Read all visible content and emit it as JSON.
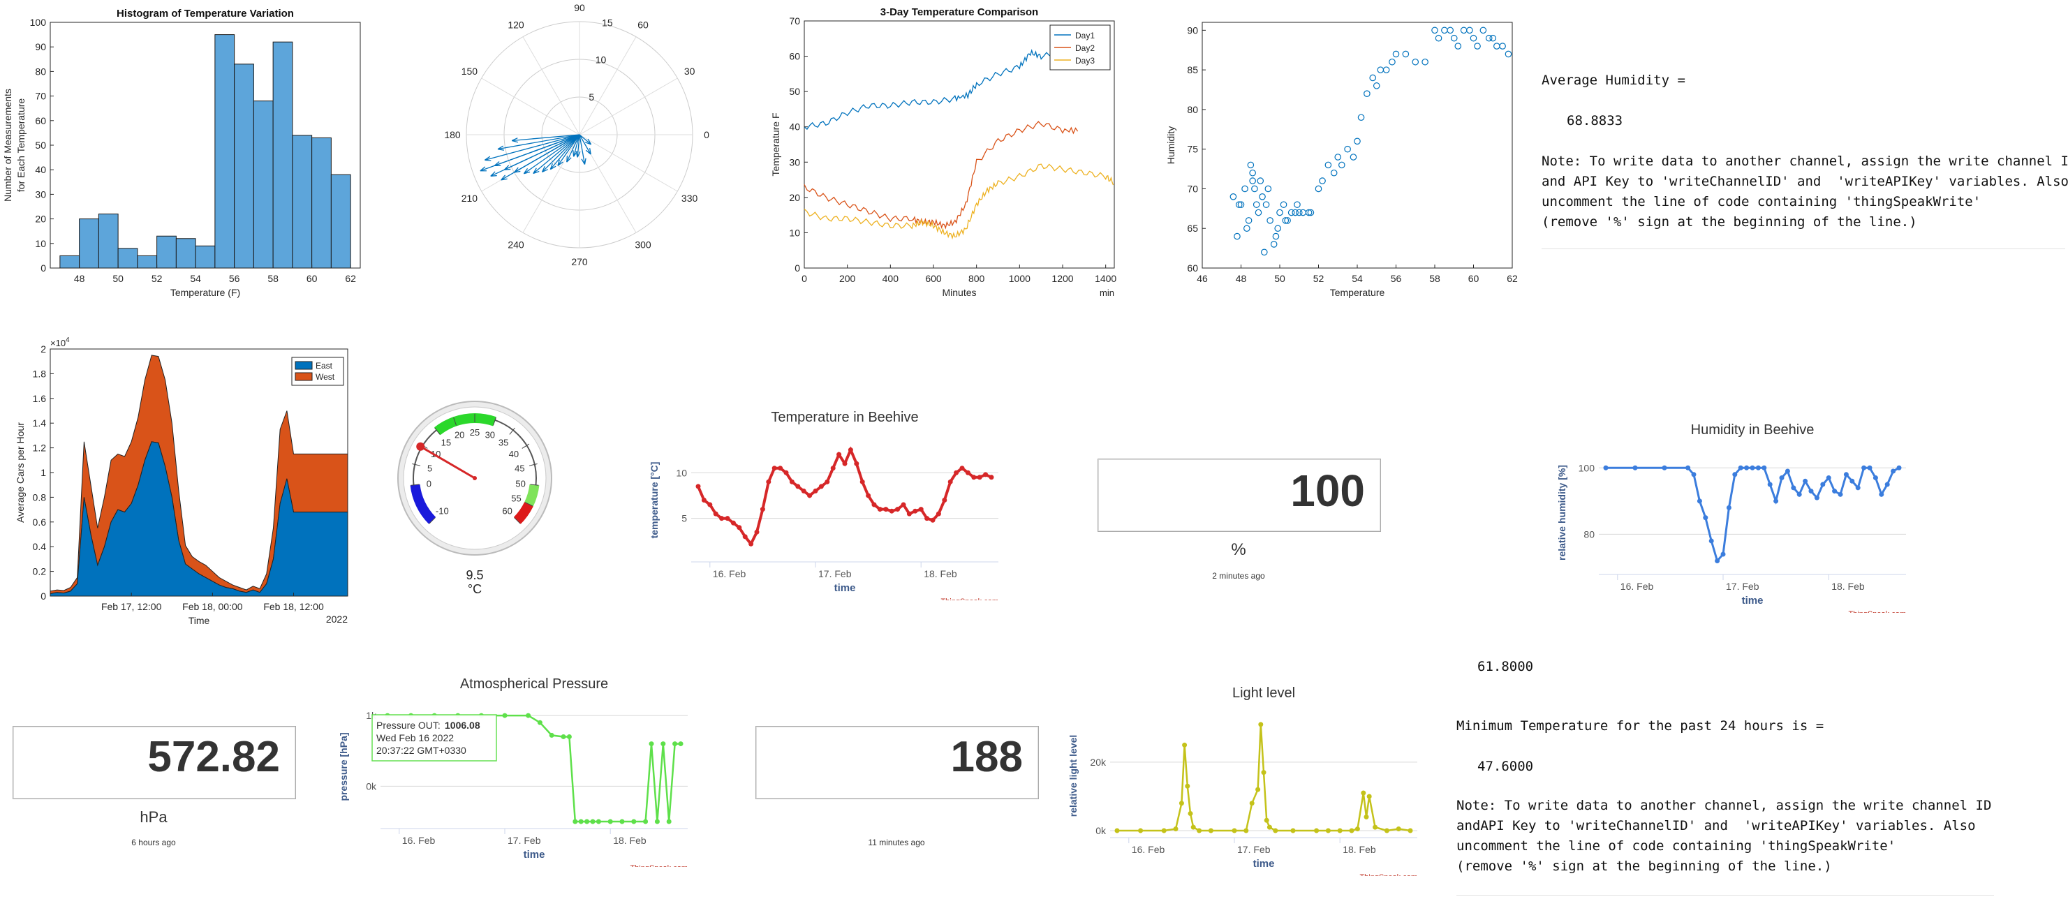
{
  "colors": {
    "matlab_blue": "#0072BD",
    "matlab_orange": "#D95319",
    "matlab_yellow": "#EDB120",
    "bar_fill": "#5DA5DA",
    "ts_red": "#d62728",
    "ts_blue": "#3b7ddd",
    "ts_green": "#5ee04a",
    "ts_olive": "#c4c21a",
    "ts_credit": "#c0392b"
  },
  "histogram": {
    "chart_data": {
      "type": "bar",
      "title": "Histogram of Temperature Variation",
      "xlabel": "Temperature (F)",
      "ylabel_line1": "Number of Measurements",
      "ylabel_line2": "for Each Temperature",
      "bin_edges": [
        47,
        48,
        49,
        50,
        51,
        52,
        53,
        54,
        55,
        56,
        57,
        58,
        59,
        60,
        61,
        62
      ],
      "values": [
        5,
        20,
        22,
        8,
        5,
        13,
        12,
        9,
        95,
        83,
        68,
        92,
        54,
        53,
        38
      ],
      "xlim": [
        46.5,
        62.5
      ],
      "ylim": [
        0,
        100
      ],
      "xticks": [
        "48",
        "50",
        "52",
        "54",
        "56",
        "58",
        "60",
        "62"
      ],
      "yticks": [
        "0",
        "10",
        "20",
        "30",
        "40",
        "50",
        "60",
        "70",
        "80",
        "90",
        "100"
      ]
    }
  },
  "polar": {
    "chart_data": {
      "type": "compass",
      "angle_labels": [
        "0",
        "30",
        "60",
        "90",
        "120",
        "150",
        "180",
        "210",
        "240",
        "270",
        "300",
        "330"
      ],
      "radius_labels": [
        "5",
        "10",
        "15"
      ],
      "rmax": 15,
      "vectors_note_deg_r": [
        [
          195,
          13
        ],
        [
          200,
          12
        ],
        [
          205,
          11
        ],
        [
          210,
          10
        ],
        [
          190,
          11
        ],
        [
          215,
          9
        ],
        [
          220,
          8
        ],
        [
          225,
          7
        ],
        [
          200,
          14
        ],
        [
          205,
          13
        ],
        [
          210,
          12
        ],
        [
          185,
          9
        ],
        [
          230,
          6
        ],
        [
          235,
          5
        ],
        [
          245,
          4
        ],
        [
          255,
          3
        ],
        [
          265,
          3
        ],
        [
          280,
          4
        ],
        [
          300,
          3
        ],
        [
          320,
          2
        ]
      ]
    }
  },
  "comparison": {
    "chart_data": {
      "type": "line",
      "title": "3-Day Temperature Comparison",
      "xlabel": "Minutes",
      "ylabel": "Temperature F",
      "xunit": "min",
      "xlim": [
        0,
        1440
      ],
      "ylim": [
        0,
        70
      ],
      "xticks": [
        "0",
        "200",
        "400",
        "600",
        "800",
        "1000",
        "1200",
        "1400"
      ],
      "yticks": [
        "0",
        "10",
        "20",
        "30",
        "40",
        "50",
        "60",
        "70"
      ],
      "series": [
        {
          "name": "Day1",
          "x": [
            0,
            100,
            200,
            300,
            400,
            500,
            600,
            700,
            760,
            800,
            900,
            1000,
            1050,
            1100,
            1200,
            1280
          ],
          "y": [
            40,
            41,
            44,
            46,
            46,
            47,
            47,
            48,
            49,
            52,
            55,
            57,
            61,
            60,
            61,
            60
          ]
        },
        {
          "name": "Day2",
          "x": [
            0,
            100,
            200,
            300,
            400,
            500,
            550,
            600,
            650,
            700,
            750,
            800,
            900,
            1000,
            1100,
            1200,
            1280
          ],
          "y": [
            23,
            20,
            18,
            16,
            14,
            14,
            13,
            13,
            12,
            13,
            18,
            30,
            36,
            39,
            41,
            39,
            39
          ]
        },
        {
          "name": "Day3",
          "x": [
            0,
            100,
            200,
            300,
            400,
            500,
            550,
            600,
            650,
            700,
            750,
            800,
            850,
            900,
            1000,
            1100,
            1200,
            1300,
            1400,
            1440
          ],
          "y": [
            16,
            14,
            14,
            13,
            12,
            12,
            13,
            12,
            10,
            9,
            11,
            18,
            22,
            24,
            26,
            29,
            28,
            27,
            26,
            24
          ]
        }
      ]
    }
  },
  "humidity_scatter": {
    "chart_data": {
      "type": "scatter",
      "xlabel": "Temperature",
      "ylabel": "Humidity",
      "xlim": [
        46,
        62
      ],
      "ylim": [
        60,
        91
      ],
      "xticks": [
        "46",
        "48",
        "50",
        "52",
        "54",
        "56",
        "58",
        "60",
        "62"
      ],
      "yticks": [
        "60",
        "65",
        "70",
        "75",
        "80",
        "85",
        "90"
      ],
      "x": [
        47.6,
        47.8,
        48,
        48.2,
        48.4,
        48.5,
        48.6,
        48.7,
        48.8,
        48.9,
        49,
        49.1,
        49.2,
        49.3,
        49.5,
        49.7,
        49.9,
        50,
        50.2,
        50.4,
        50.6,
        50.8,
        51,
        51.2,
        51.5,
        52,
        52.2,
        52.5,
        52.8,
        53,
        53.2,
        53.5,
        53.8,
        54,
        54.2,
        54.5,
        54.8,
        55,
        55.2,
        55.5,
        55.8,
        56,
        56.5,
        57,
        57.5,
        58,
        58.2,
        58.5,
        58.8,
        59,
        59.2,
        59.5,
        59.8,
        60,
        60.2,
        60.5,
        60.8,
        61,
        61.2,
        61.5,
        61.8,
        47.9,
        48.3,
        48.6,
        49.4,
        49.8,
        50.3,
        50.9,
        51.6
      ],
      "y": [
        69,
        64,
        68,
        70,
        66,
        73,
        72,
        70,
        68,
        67,
        71,
        69,
        62,
        68,
        66,
        63,
        65,
        67,
        68,
        66,
        67,
        67,
        67,
        67,
        67,
        70,
        71,
        73,
        72,
        74,
        73,
        75,
        74,
        76,
        79,
        82,
        84,
        83,
        85,
        85,
        86,
        87,
        87,
        86,
        86,
        90,
        89,
        90,
        90,
        89,
        88,
        90,
        90,
        89,
        88,
        90,
        89,
        89,
        88,
        88,
        87,
        68,
        65,
        71,
        70,
        64,
        66,
        68,
        67
      ]
    }
  },
  "avg_humidity_text": {
    "label": "Average Humidity =",
    "value": "68.8833",
    "note1": "Note: To write data to another channel, assign the write channel ID",
    "note2": "and API Key to 'writeChannelID' and  'writeAPIKey' variables. Also",
    "note3": "uncomment the line of code containing 'thingSpeakWrite'",
    "note4": "(remove '%' sign at the beginning of the line.)"
  },
  "area": {
    "chart_data": {
      "type": "area",
      "ylabel": "Average Cars per Hour",
      "xlabel": "Time",
      "year_label": "2022",
      "exponent_label": "×10",
      "exponent_power": "4",
      "ylim": [
        0,
        20000
      ],
      "yticks": [
        "0",
        "0.2",
        "0.4",
        "0.6",
        "0.8",
        "1",
        "1.2",
        "1.4",
        "1.6",
        "1.8",
        "2"
      ],
      "xtick_labels": [
        "Feb 17, 12:00",
        "Feb 18, 00:00",
        "Feb 18, 12:00"
      ],
      "xtick_hours": [
        12,
        24,
        36
      ],
      "hours": [
        0,
        1,
        2,
        3,
        4,
        5,
        6,
        7,
        8,
        9,
        10,
        11,
        12,
        13,
        14,
        15,
        16,
        17,
        18,
        19,
        20,
        21,
        22,
        23,
        24,
        25,
        26,
        27,
        28,
        29,
        30,
        31,
        32,
        33,
        34,
        35,
        36,
        37,
        38,
        39,
        40,
        41,
        42,
        43,
        44
      ],
      "series": [
        {
          "name": "East",
          "values": [
            200,
            300,
            250,
            400,
            1000,
            8000,
            5000,
            2500,
            4000,
            6000,
            7000,
            6800,
            7500,
            9000,
            11000,
            12500,
            12400,
            10500,
            8000,
            4500,
            2600,
            2200,
            1800,
            1500,
            1200,
            900,
            700,
            600,
            400,
            300,
            500,
            300,
            1000,
            3000,
            7500,
            9500,
            6800,
            6800,
            6800,
            6800,
            6800,
            6800,
            6800,
            6800,
            6800
          ]
        },
        {
          "name": "West",
          "values": [
            200,
            200,
            200,
            300,
            500,
            4500,
            4000,
            3000,
            4000,
            5000,
            4500,
            4500,
            5000,
            5500,
            6500,
            7000,
            7000,
            7000,
            6000,
            4000,
            1500,
            1000,
            1000,
            1000,
            800,
            600,
            500,
            300,
            300,
            200,
            300,
            300,
            800,
            2500,
            6000,
            5500,
            4700,
            4700,
            4700,
            4700,
            4700,
            4700,
            4700,
            4700,
            4700
          ]
        }
      ],
      "xmax_hour": 44
    }
  },
  "gauge": {
    "value": "9.5",
    "unit": "°C",
    "min": -10,
    "max": 60,
    "tick_labels": [
      "-10",
      "0",
      "5",
      "10",
      "15",
      "20",
      "25",
      "30",
      "35",
      "40",
      "45",
      "50",
      "55",
      "60"
    ],
    "needle_value": 9.5
  },
  "beehive_temp": {
    "chart_data": {
      "type": "line",
      "title": "Temperature in Beehive",
      "ylabel": "temperature [°C]",
      "xlabel": "time",
      "credit": "ThingSpeak.com",
      "xtick_labels": [
        "16. Feb",
        "17. Feb",
        "18. Feb"
      ],
      "yticks": [
        "5",
        "10"
      ],
      "ylim": [
        1,
        13
      ],
      "x": [
        0,
        1,
        2,
        3,
        4,
        5,
        6,
        7,
        8,
        9,
        10,
        11,
        12,
        13,
        14,
        15,
        16,
        17,
        18,
        19,
        20,
        21,
        22,
        23,
        24,
        25,
        26,
        27,
        28,
        29,
        30,
        31,
        32,
        33,
        34,
        35,
        36,
        37,
        38,
        39,
        40,
        41,
        42,
        43,
        44,
        45,
        46,
        47,
        48,
        49,
        50
      ],
      "y": [
        8.5,
        7,
        6.5,
        5.5,
        5,
        5,
        4.5,
        4,
        3,
        2.2,
        3.5,
        6,
        9,
        10.5,
        10.5,
        10,
        9,
        8.5,
        8,
        7.5,
        8,
        8.5,
        9,
        10.5,
        12,
        11,
        12.5,
        11,
        9,
        7.5,
        6.5,
        6,
        6,
        5.8,
        6,
        6.5,
        5.5,
        5.8,
        6,
        5,
        4.8,
        5.5,
        7,
        9,
        10,
        10.5,
        10,
        9.5,
        9.5,
        9.8,
        9.5
      ]
    }
  },
  "humidity_tile": {
    "value": "100",
    "unit": "%",
    "ago": "2 minutes ago"
  },
  "beehive_humidity": {
    "chart_data": {
      "type": "line",
      "title": "Humidity in Beehive",
      "ylabel": "relative humidity [%]",
      "xlabel": "time",
      "credit": "ThingSpeak.com",
      "xtick_labels": [
        "16. Feb",
        "17. Feb",
        "18. Feb"
      ],
      "yticks": [
        "80",
        "100"
      ],
      "ylim": [
        70,
        103
      ],
      "x": [
        0,
        5,
        10,
        14,
        15,
        16,
        17,
        18,
        19,
        20,
        21,
        22,
        23,
        24,
        25,
        26,
        27,
        28,
        29,
        30,
        31,
        32,
        33,
        34,
        35,
        36,
        37,
        38,
        39,
        40,
        41,
        42,
        43,
        44,
        45,
        46,
        47,
        48,
        49,
        50
      ],
      "y": [
        100,
        100,
        100,
        100,
        98,
        90,
        85,
        78,
        72,
        74,
        88,
        98,
        100,
        100,
        100,
        100,
        100,
        95,
        90,
        97,
        99,
        94,
        92,
        96,
        93,
        91,
        95,
        97,
        93,
        92,
        98,
        96,
        94,
        100,
        100,
        97,
        92,
        95,
        99,
        100
      ]
    }
  },
  "pressure_tile": {
    "value": "572.82",
    "unit": "hPa",
    "ago": "6 hours ago"
  },
  "pressure_chart": {
    "chart_data": {
      "type": "line",
      "title": "Atmospherical Pressure",
      "ylabel": "pressure [hPa]",
      "xlabel": "time",
      "credit": "ThingSpeak.com",
      "xtick_labels": [
        "16. Feb",
        "17. Feb",
        "18. Feb"
      ],
      "yticks": [
        "0k",
        "1k"
      ],
      "ylim": [
        -500,
        1050
      ],
      "x": [
        0,
        4,
        8,
        12,
        16,
        20,
        24,
        26,
        28,
        30,
        31,
        32,
        33,
        34,
        35,
        36,
        38,
        40,
        42,
        44,
        45,
        46,
        47,
        48,
        49,
        50
      ],
      "y": [
        1000,
        1000,
        1000,
        1000,
        1000,
        1000,
        1000,
        900,
        720,
        700,
        700,
        -500,
        -500,
        -500,
        -500,
        -500,
        -500,
        -500,
        -500,
        -500,
        600,
        -500,
        600,
        -500,
        600,
        600
      ]
    },
    "tooltip_line1_label": "Pressure OUT:",
    "tooltip_line1_value": "1006.08",
    "tooltip_line2": "Wed Feb 16 2022",
    "tooltip_line3": "20:37:22 GMT+0330"
  },
  "light_tile": {
    "value": "188",
    "ago": "11 minutes ago"
  },
  "light_chart": {
    "chart_data": {
      "type": "line",
      "title": "Light level",
      "ylabel": "relative light level",
      "xlabel": "time",
      "credit": "ThingSpeak.com",
      "xtick_labels": [
        "16. Feb",
        "17. Feb",
        "18. Feb"
      ],
      "yticks": [
        "0k",
        "20k"
      ],
      "ylim": [
        0,
        32000
      ],
      "x": [
        0,
        4,
        8,
        10,
        11,
        11.5,
        12,
        12.5,
        13,
        14,
        16,
        20,
        22,
        23,
        24,
        24.5,
        25,
        25.5,
        26,
        27,
        30,
        34,
        36,
        38,
        40,
        41,
        42,
        42.5,
        43,
        44,
        46,
        48,
        50
      ],
      "y": [
        0,
        0,
        0,
        500,
        8000,
        25000,
        13000,
        5000,
        1000,
        0,
        0,
        0,
        0,
        8000,
        12000,
        31000,
        17000,
        3000,
        1000,
        0,
        0,
        0,
        0,
        0,
        0,
        500,
        11000,
        4000,
        10000,
        1000,
        0,
        500,
        0
      ]
    }
  },
  "min_temp_text": {
    "prev_value": "61.8000",
    "label": "Minimum Temperature for the past 24 hours is =",
    "value": "47.6000",
    "note1": "Note: To write data to another channel, assign the write channel ID",
    "note2": "andAPI Key to 'writeChannelID' and  'writeAPIKey' variables. Also",
    "note3": "uncomment the line of code containing 'thingSpeakWrite'",
    "note4": "(remove '%' sign at the beginning of the line.)"
  }
}
